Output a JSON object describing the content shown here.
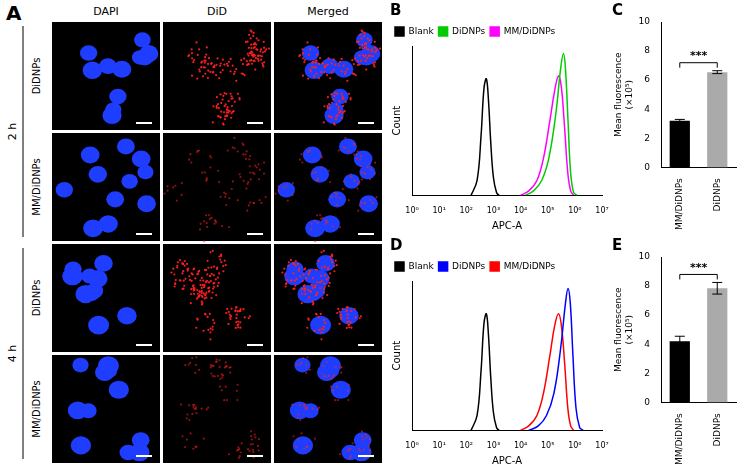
{
  "figure": {
    "panel": "A",
    "columns": [
      "DAPI",
      "DiD",
      "Merged"
    ],
    "groups": [
      {
        "label": "2 h",
        "rows": [
          "DiDNPs",
          "MM/DiDNPs"
        ]
      },
      {
        "label": "4 h",
        "rows": [
          "DiDNPs",
          "MM/DiDNPs"
        ]
      }
    ]
  },
  "chart_data": [
    {
      "type": "line",
      "title": "B",
      "x_label": "APC-A",
      "y_label": "Count",
      "log": "x",
      "grid": false,
      "legend": "upper left",
      "tick_labels": "x",
      "xlim": [
        1,
        10000000
      ],
      "xticks": [
        {
          "value": 1,
          "label": "10⁰"
        },
        {
          "value": 10,
          "label": "10¹"
        },
        {
          "value": 100,
          "label": "10²"
        },
        {
          "value": 1000,
          "label": "10³"
        },
        {
          "value": 10000,
          "label": "10⁴"
        },
        {
          "value": 100000,
          "label": "10⁵"
        },
        {
          "value": 1000000,
          "label": "10⁶"
        },
        {
          "value": 10000000,
          "label": "10⁷"
        }
      ],
      "ylim": [
        0,
        100
      ],
      "series": [
        {
          "name": "Blank",
          "color": "#000000",
          "x": [
            150,
            250,
            350,
            450,
            550,
            650,
            800,
            1000,
            1300,
            1600
          ],
          "values": [
            0,
            10,
            40,
            72,
            78,
            65,
            35,
            12,
            2,
            0
          ]
        },
        {
          "name": "DiDNPs",
          "color": "#00cc00",
          "x": [
            15000,
            30000,
            60000,
            110000,
            200000,
            300000,
            380000,
            450000,
            560000,
            700000,
            900000,
            1200000
          ],
          "values": [
            0,
            3,
            10,
            25,
            55,
            85,
            95,
            85,
            50,
            15,
            2,
            0
          ]
        },
        {
          "name": "MM/DiDNPs",
          "color": "#ff00ff",
          "x": [
            10000,
            20000,
            40000,
            70000,
            120000,
            180000,
            250000,
            320000,
            420000,
            550000,
            700000,
            900000
          ],
          "values": [
            0,
            3,
            10,
            25,
            50,
            70,
            80,
            72,
            45,
            15,
            3,
            0
          ]
        }
      ]
    },
    {
      "type": "bar",
      "title": "C",
      "categories": [
        "MM/DiDNPs",
        "DiDNPs"
      ],
      "values": [
        3.2,
        6.55
      ],
      "errors": [
        0.1,
        0.1
      ],
      "colors": [
        "#000000",
        "#aaaaaa"
      ],
      "y_label": [
        "Mean fluorescence",
        "(×10⁵)"
      ],
      "ylim": [
        0,
        10
      ],
      "yticks": [
        0,
        2,
        4,
        6,
        8,
        10
      ],
      "grid": false,
      "annotations": [
        "***"
      ]
    },
    {
      "type": "line",
      "title": "D",
      "x_label": "APC-A",
      "y_label": "Count",
      "log": "x",
      "grid": false,
      "legend": "upper left",
      "tick_labels": "x",
      "xlim": [
        1,
        10000000
      ],
      "xticks": [
        {
          "value": 1,
          "label": "10⁰"
        },
        {
          "value": 10,
          "label": "10¹"
        },
        {
          "value": 100,
          "label": "10²"
        },
        {
          "value": 1000,
          "label": "10³"
        },
        {
          "value": 10000,
          "label": "10⁴"
        },
        {
          "value": 100000,
          "label": "10⁵"
        },
        {
          "value": 1000000,
          "label": "10⁶"
        },
        {
          "value": 10000000,
          "label": "10⁷"
        }
      ],
      "ylim": [
        0,
        100
      ],
      "series": [
        {
          "name": "Blank",
          "color": "#000000",
          "x": [
            150,
            250,
            350,
            450,
            550,
            650,
            800,
            1000,
            1300,
            1600
          ],
          "values": [
            0,
            10,
            40,
            72,
            78,
            65,
            35,
            12,
            2,
            0
          ]
        },
        {
          "name": "DiDNPs",
          "color": "#0000ff",
          "x": [
            20000,
            45000,
            90000,
            170000,
            300000,
            450000,
            560000,
            680000,
            850000,
            1100000,
            1500000,
            2000000
          ],
          "values": [
            0,
            3,
            10,
            25,
            55,
            85,
            95,
            85,
            50,
            15,
            2,
            0
          ]
        },
        {
          "name": "MM/DiDNPs",
          "color": "#ff0000",
          "x": [
            10000,
            20000,
            40000,
            70000,
            120000,
            180000,
            250000,
            320000,
            420000,
            550000,
            700000,
            900000
          ],
          "values": [
            0,
            3,
            10,
            25,
            50,
            70,
            78,
            70,
            45,
            15,
            3,
            0
          ]
        }
      ]
    },
    {
      "type": "bar",
      "title": "E",
      "categories": [
        "MM/DiDNPs",
        "DiDNPs"
      ],
      "values": [
        4.2,
        7.85
      ],
      "errors": [
        0.35,
        0.4
      ],
      "colors": [
        "#000000",
        "#aaaaaa"
      ],
      "y_label": [
        "Mean fluorescence",
        "(×10⁵)"
      ],
      "ylim": [
        0,
        10
      ],
      "yticks": [
        0,
        2,
        4,
        6,
        8,
        10
      ],
      "grid": false,
      "annotations": [
        "***"
      ]
    }
  ]
}
